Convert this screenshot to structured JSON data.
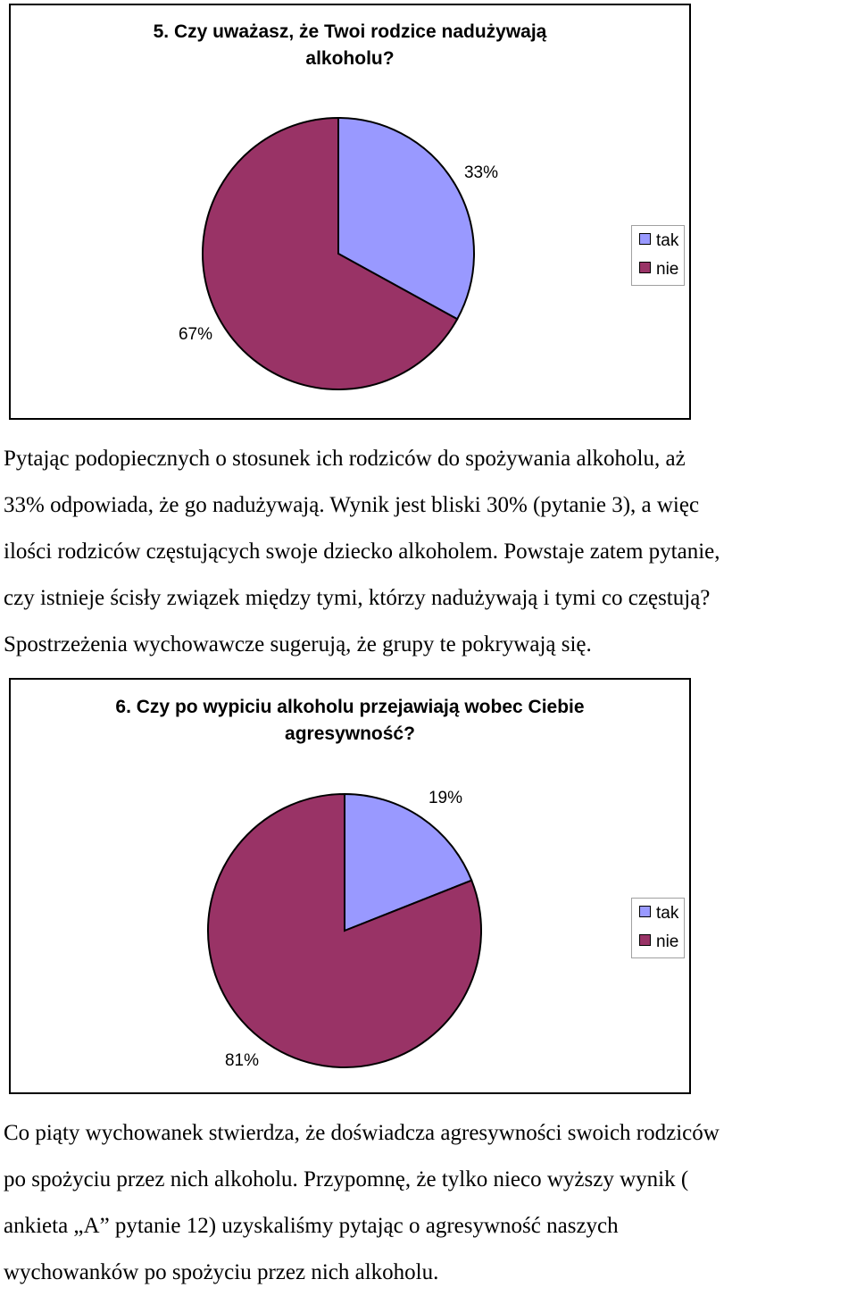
{
  "charts": [
    {
      "title_lines": [
        "5. Czy uważasz, że Twoi rodzice nadużywają",
        "alkoholu?"
      ],
      "legend": [
        {
          "label": "tak",
          "color": "#9999ff"
        },
        {
          "label": "nie",
          "color": "#993366"
        }
      ],
      "slice_labels": [
        "33%",
        "67%"
      ]
    },
    {
      "title_lines": [
        "6. Czy po wypiciu alkoholu przejawiają wobec Ciebie",
        "agresywność?"
      ],
      "legend": [
        {
          "label": "tak",
          "color": "#9999ff"
        },
        {
          "label": "nie",
          "color": "#993366"
        }
      ],
      "slice_labels": [
        "19%",
        "81%"
      ]
    }
  ],
  "chart_data": [
    {
      "type": "pie",
      "title": "5. Czy uważasz, że Twoi rodzice nadużywają alkoholu?",
      "categories": [
        "tak",
        "nie"
      ],
      "values": [
        33,
        67
      ],
      "colors": [
        "#9999ff",
        "#993366"
      ],
      "legend_position": "right"
    },
    {
      "type": "pie",
      "title": "6. Czy po wypiciu alkoholu przejawiają wobec Ciebie agresywność?",
      "categories": [
        "tak",
        "nie"
      ],
      "values": [
        19,
        81
      ],
      "colors": [
        "#9999ff",
        "#993366"
      ],
      "legend_position": "right"
    }
  ],
  "paragraphs": [
    {
      "lines": [
        "Pytając podopiecznych o stosunek ich rodziców do spożywania alkoholu, aż",
        "33% odpowiada, że go nadużywają. Wynik jest bliski 30% (pytanie 3), a więc",
        "ilości rodziców częstujących swoje dziecko alkoholem. Powstaje zatem pytanie,",
        "czy istnieje ścisły związek między tymi, którzy nadużywają i tymi co częstują?",
        "Spostrzeżenia wychowawcze sugerują, że grupy te pokrywają się."
      ]
    },
    {
      "lines": [
        "Co piąty wychowanek stwierdza, że doświadcza agresywności swoich rodziców",
        "po spożyciu przez nich alkoholu. Przypomnę, że tylko nieco wyższy wynik (",
        "ankieta „A” pytanie 12) uzyskaliśmy pytając o agresywność naszych",
        "wychowanków po spożyciu przez nich alkoholu."
      ]
    }
  ]
}
